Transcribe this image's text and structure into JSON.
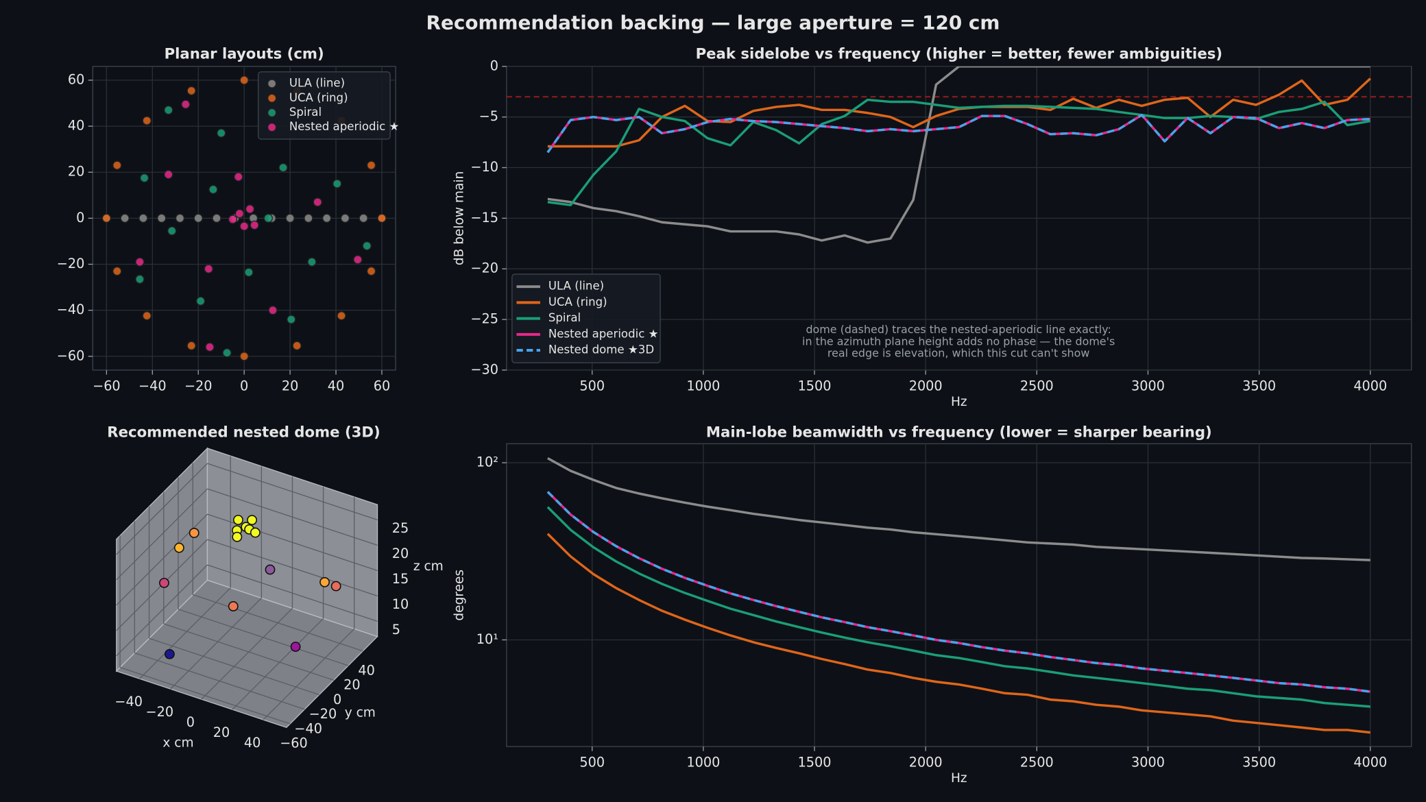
{
  "title": "Recommendation backing — large aperture = 120 cm",
  "chart_data": [
    {
      "type": "scatter",
      "title": "Planar layouts (cm)",
      "legend": "upper right",
      "grid": true,
      "xlim": [
        -66,
        66
      ],
      "ylim": [
        -66,
        66
      ],
      "xticks": [
        {
          "value": -60,
          "label": "−60"
        },
        {
          "value": -40,
          "label": "−40"
        },
        {
          "value": -20,
          "label": "−20"
        },
        0,
        20,
        40,
        60
      ],
      "yticks": [
        {
          "value": -60,
          "label": "−60"
        },
        {
          "value": -40,
          "label": "−40"
        },
        {
          "value": -20,
          "label": "−20"
        },
        0,
        20,
        40,
        60
      ],
      "series": [
        {
          "name": "ULA (line)",
          "color": "#8c8c8c",
          "x": [
            -60,
            -52,
            -44,
            -36,
            -28,
            -20,
            -12,
            -4,
            4,
            12,
            20,
            28,
            36,
            44,
            52,
            60
          ],
          "y": [
            0,
            0,
            0,
            0,
            0,
            0,
            0,
            0,
            0,
            0,
            0,
            0,
            0,
            0,
            0,
            0
          ]
        },
        {
          "name": "UCA (ring)",
          "color": "#e0651a",
          "x": [
            60,
            55.4,
            42.4,
            23,
            0,
            -23,
            -42.4,
            -55.4,
            -60,
            -55.4,
            -42.4,
            -23,
            0,
            23,
            42.4,
            55.4
          ],
          "y": [
            0,
            23,
            42.4,
            55.4,
            60,
            55.4,
            42.4,
            23,
            0,
            -23,
            -42.4,
            -55.4,
            -60,
            -55.4,
            -42.4,
            -23
          ]
        },
        {
          "name": "Spiral",
          "color": "#1b9e77",
          "x": [
            -33,
            -10,
            -43.5,
            -13.5,
            17,
            40.5,
            -31.5,
            10.5,
            -45.5,
            -19,
            2,
            29.5,
            53.5,
            -7.5,
            20.5
          ],
          "y": [
            47,
            37,
            17.5,
            12.5,
            22,
            15,
            -5.5,
            0,
            -26.5,
            -36,
            -23.5,
            -19,
            -12,
            -58.5,
            -44
          ]
        },
        {
          "name": "Nested aperiodic ★",
          "color": "#e7298a",
          "x": [
            -25.5,
            -33,
            -2.5,
            2.5,
            -2,
            -5,
            0,
            4.5,
            32,
            -45.5,
            -15.5,
            12.5,
            49.5,
            -15
          ],
          "y": [
            49.5,
            19,
            18,
            4,
            2,
            -0.5,
            -3.5,
            -3,
            7,
            -19,
            -22,
            -40,
            -18,
            -56
          ]
        }
      ]
    },
    {
      "type": "line",
      "title": "Peak sidelobe vs frequency (higher = better, fewer ambiguities)",
      "xlabel": "Hz",
      "ylabel": "dB below main",
      "legend": "lower left",
      "grid": true,
      "xlim": [
        115,
        4185
      ],
      "ylim": [
        -30,
        0
      ],
      "xticks": [
        500,
        1000,
        1500,
        2000,
        2500,
        3000,
        3500,
        4000
      ],
      "yticks": [
        {
          "value": -30,
          "label": "−30"
        },
        {
          "value": -25,
          "label": "−25"
        },
        {
          "value": -20,
          "label": "−20"
        },
        {
          "value": -15,
          "label": "−15"
        },
        {
          "value": -10,
          "label": "−10"
        },
        {
          "value": -5,
          "label": "−5"
        },
        0
      ],
      "reference_line": -3,
      "reference_color": "#8e1b1b",
      "annotation": [
        "dome (dashed) traces the nested-aperiodic line exactly:",
        "in the azimuth plane height adds no phase — the dome's",
        "real edge is elevation, which this cut can't show"
      ],
      "x": [
        300,
        403,
        506,
        608,
        711,
        814,
        917,
        1019,
        1122,
        1225,
        1328,
        1431,
        1533,
        1636,
        1739,
        1842,
        1944,
        2047,
        2150,
        2253,
        2356,
        2458,
        2561,
        2664,
        2767,
        2869,
        2972,
        3075,
        3178,
        3281,
        3383,
        3486,
        3589,
        3692,
        3794,
        3897,
        4000
      ],
      "series": [
        {
          "name": "ULA (line)",
          "color": "#8c8c8c",
          "values": [
            -13.1,
            -13.4,
            -14.0,
            -14.3,
            -14.8,
            -15.4,
            -15.6,
            -15.8,
            -16.3,
            -16.3,
            -16.3,
            -16.6,
            -17.2,
            -16.7,
            -17.4,
            -17.0,
            -13.2,
            -1.8,
            0,
            0,
            0,
            0,
            0,
            0,
            0,
            0,
            0,
            0,
            0,
            0,
            0,
            0,
            0,
            0,
            0,
            0,
            0
          ]
        },
        {
          "name": "UCA (ring)",
          "color": "#e0651a",
          "values": [
            -7.9,
            -7.9,
            -7.9,
            -7.9,
            -7.3,
            -5.0,
            -3.9,
            -5.4,
            -5.5,
            -4.4,
            -4.0,
            -3.8,
            -4.3,
            -4.3,
            -4.6,
            -5.0,
            -6.0,
            -4.9,
            -4.2,
            -4.0,
            -4.0,
            -4.0,
            -4.3,
            -3.2,
            -4.1,
            -3.3,
            -3.9,
            -3.3,
            -3.1,
            -5.0,
            -3.3,
            -3.8,
            -2.8,
            -1.4,
            -3.8,
            -3.3,
            -1.2
          ]
        },
        {
          "name": "Spiral",
          "color": "#1b9e77",
          "values": [
            -13.4,
            -13.7,
            -10.7,
            -8.4,
            -4.2,
            -5.0,
            -5.4,
            -7.1,
            -7.8,
            -5.5,
            -6.3,
            -7.6,
            -5.7,
            -4.9,
            -3.3,
            -3.5,
            -3.5,
            -3.8,
            -4.1,
            -4.0,
            -3.9,
            -3.9,
            -4.0,
            -4.1,
            -4.2,
            -4.5,
            -4.8,
            -5.1,
            -5.1,
            -4.9,
            -5.0,
            -5.2,
            -4.5,
            -4.2,
            -3.5,
            -5.8,
            -5.4
          ]
        },
        {
          "name": "Nested aperiodic ★",
          "color": "#e7298a",
          "values": [
            -8.5,
            -5.3,
            -5.0,
            -5.3,
            -5.0,
            -6.6,
            -6.2,
            -5.5,
            -5.2,
            -5.4,
            -5.5,
            -5.7,
            -5.9,
            -6.1,
            -6.4,
            -6.2,
            -6.4,
            -6.2,
            -6.0,
            -4.9,
            -4.9,
            -5.7,
            -6.7,
            -6.6,
            -6.8,
            -6.2,
            -4.8,
            -7.4,
            -5.1,
            -6.6,
            -5.0,
            -5.1,
            -6.1,
            -5.6,
            -6.1,
            -5.3,
            -5.2
          ]
        },
        {
          "name": "Nested dome ★3D",
          "color": "#4aa3ec",
          "dashed": true,
          "values": [
            -8.5,
            -5.3,
            -5.0,
            -5.3,
            -5.0,
            -6.6,
            -6.2,
            -5.5,
            -5.2,
            -5.4,
            -5.5,
            -5.7,
            -5.9,
            -6.1,
            -6.4,
            -6.2,
            -6.4,
            -6.2,
            -6.0,
            -4.9,
            -4.9,
            -5.7,
            -6.7,
            -6.6,
            -6.8,
            -6.2,
            -4.8,
            -7.4,
            -5.1,
            -6.6,
            -5.0,
            -5.1,
            -6.1,
            -5.6,
            -6.1,
            -5.3,
            -5.2
          ]
        }
      ]
    },
    {
      "type": "scatter3d",
      "title": "Recommended nested dome (3D)",
      "xlabel": "x cm",
      "ylabel": "y cm",
      "zlabel": "z cm",
      "xlim": [
        -55,
        55
      ],
      "ylim": [
        -65,
        60
      ],
      "zlim": [
        2,
        28
      ],
      "xticks": [
        {
          "value": -40,
          "label": "−40"
        },
        {
          "value": -20,
          "label": "−20"
        },
        0,
        20,
        40
      ],
      "yticks": [
        {
          "value": -60,
          "label": "−60"
        },
        {
          "value": -40,
          "label": "−40"
        },
        {
          "value": -20,
          "label": "−20"
        },
        0,
        20,
        40
      ],
      "zticks": [
        5,
        10,
        15,
        20,
        25
      ],
      "x": [
        -18,
        -14,
        -10,
        -16,
        -12,
        -8,
        -20,
        -40,
        -45,
        35,
        40,
        -5,
        -50,
        -10,
        35,
        -30
      ],
      "y": [
        22,
        26,
        22,
        18,
        30,
        26,
        28,
        10,
        0,
        30,
        35,
        40,
        -10,
        0,
        -10,
        -45
      ],
      "z": [
        21,
        21.5,
        22,
        20.5,
        22.5,
        21,
        22,
        20,
        18,
        15,
        14,
        12,
        12,
        10,
        8,
        5
      ],
      "colors": [
        "#f0f921",
        "#f0f921",
        "#f0f921",
        "#f0f921",
        "#f0f921",
        "#f0f921",
        "#f0f921",
        "#f89540",
        "#fdb42f",
        "#fca636",
        "#e66c5c",
        "#8b5a9a",
        "#cc4778",
        "#ed7953",
        "#9c179e",
        "#1a1a8c"
      ]
    },
    {
      "type": "line",
      "title": "Main-lobe beamwidth vs frequency (lower = sharper bearing)",
      "xlabel": "Hz",
      "ylabel": "degrees",
      "grid": true,
      "log_y": true,
      "xlim": [
        115,
        4185
      ],
      "ylim": [
        2.5,
        128
      ],
      "xticks": [
        500,
        1000,
        1500,
        2000,
        2500,
        3000,
        3500,
        4000
      ],
      "yticks": [
        {
          "value": 10,
          "label": "10¹"
        },
        {
          "value": 100,
          "label": "10²"
        }
      ],
      "x": [
        300,
        403,
        506,
        608,
        711,
        814,
        917,
        1019,
        1122,
        1225,
        1328,
        1431,
        1533,
        1636,
        1739,
        1842,
        1944,
        2047,
        2150,
        2253,
        2356,
        2458,
        2561,
        2664,
        2767,
        2869,
        2972,
        3075,
        3178,
        3281,
        3383,
        3486,
        3589,
        3692,
        3794,
        3897,
        4000
      ],
      "series": [
        {
          "name": "ULA (line)",
          "color": "#8c8c8c",
          "values": [
            106,
            90,
            80,
            72,
            67,
            63,
            59.5,
            56.5,
            54,
            51.5,
            49.5,
            47.5,
            46,
            44.5,
            43,
            42,
            40.5,
            39.5,
            38.5,
            37.5,
            36.5,
            35.5,
            35,
            34.5,
            33.5,
            33,
            32.5,
            32,
            31.5,
            31,
            30.5,
            30,
            29.5,
            29,
            28.8,
            28.5,
            28.2
          ]
        },
        {
          "name": "UCA (ring)",
          "color": "#e0651a",
          "values": [
            39.7,
            29.6,
            23.5,
            19.6,
            16.8,
            14.6,
            13.0,
            11.7,
            10.6,
            9.7,
            9.0,
            8.4,
            7.8,
            7.3,
            6.8,
            6.5,
            6.1,
            5.8,
            5.6,
            5.3,
            5.0,
            4.9,
            4.6,
            4.5,
            4.3,
            4.2,
            4.0,
            3.9,
            3.8,
            3.7,
            3.5,
            3.4,
            3.3,
            3.2,
            3.1,
            3.1,
            3.0
          ]
        },
        {
          "name": "Spiral",
          "color": "#1b9e77",
          "values": [
            56.2,
            41.8,
            33.3,
            27.7,
            23.7,
            20.7,
            18.4,
            16.6,
            15.0,
            13.8,
            12.7,
            11.8,
            11.0,
            10.3,
            9.7,
            9.2,
            8.7,
            8.2,
            7.9,
            7.5,
            7.1,
            6.9,
            6.6,
            6.3,
            6.1,
            5.9,
            5.7,
            5.5,
            5.3,
            5.2,
            5.0,
            4.8,
            4.7,
            4.6,
            4.4,
            4.3,
            4.2
          ]
        },
        {
          "name": "Nested aperiodic ★",
          "color": "#e7298a",
          "values": [
            68.5,
            51.0,
            40.6,
            33.8,
            28.9,
            25.2,
            22.4,
            20.2,
            18.3,
            16.8,
            15.5,
            14.4,
            13.4,
            12.6,
            11.8,
            11.2,
            10.6,
            10.0,
            9.6,
            9.1,
            8.7,
            8.4,
            8.0,
            7.7,
            7.4,
            7.2,
            6.9,
            6.7,
            6.5,
            6.3,
            6.1,
            5.9,
            5.7,
            5.6,
            5.4,
            5.3,
            5.1
          ]
        },
        {
          "name": "Nested dome ★3D",
          "color": "#4aa3ec",
          "dashed": true,
          "values": [
            68.5,
            51.0,
            40.6,
            33.8,
            28.9,
            25.2,
            22.4,
            20.2,
            18.3,
            16.8,
            15.5,
            14.4,
            13.4,
            12.6,
            11.8,
            11.2,
            10.6,
            10.0,
            9.6,
            9.1,
            8.7,
            8.4,
            8.0,
            7.7,
            7.4,
            7.2,
            6.9,
            6.7,
            6.5,
            6.3,
            6.1,
            5.9,
            5.7,
            5.6,
            5.4,
            5.3,
            5.1
          ]
        }
      ]
    }
  ]
}
